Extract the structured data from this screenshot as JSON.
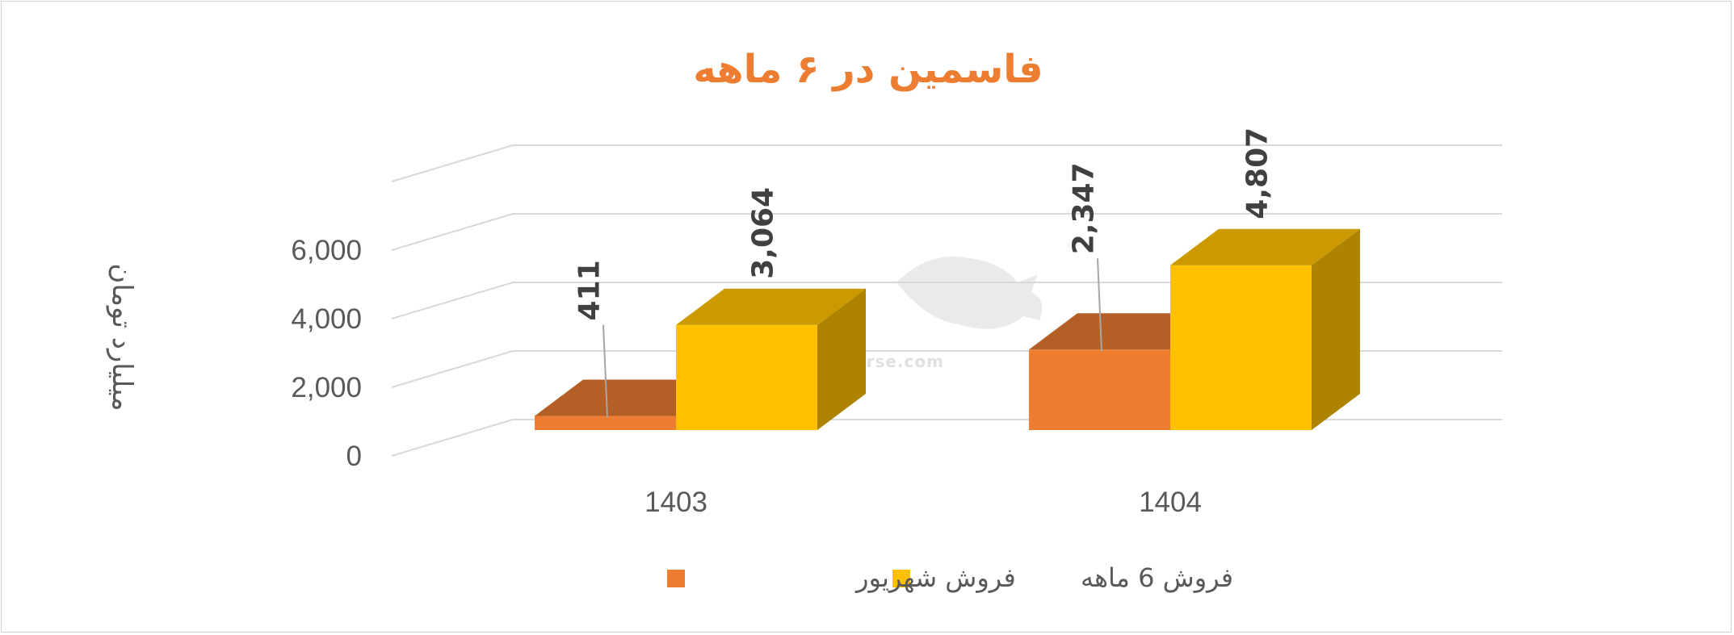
{
  "chart_data": {
    "type": "bar",
    "title": "فاسمین در ۶ ماهه",
    "ylabel": "میلیارد تومان",
    "categories": [
      "1403",
      "1404"
    ],
    "series": [
      {
        "name": "فروش شهریور",
        "values": [
          411,
          2347
        ],
        "labels": [
          "411",
          "2,347"
        ],
        "color": "#ED7D31"
      },
      {
        "name": "فروش 6  ماهه",
        "values": [
          3064,
          4807
        ],
        "labels": [
          "3,064",
          "4,807"
        ],
        "color": "#FFC000"
      }
    ],
    "y_ticks": [
      "0",
      "2,000",
      "4,000",
      "6,000"
    ],
    "ylim": [
      0,
      8000
    ],
    "grid": true,
    "legend_position": "bottom"
  },
  "watermark": {
    "text": "nabzebourse.com"
  }
}
